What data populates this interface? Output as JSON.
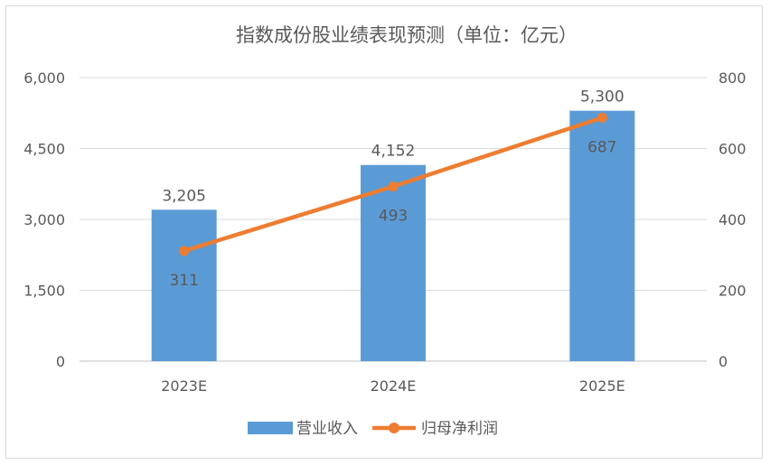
{
  "chart_data": {
    "type": "bar+line",
    "title": "指数成份股业绩表现预测（单位：亿元）",
    "categories": [
      "2023E",
      "2024E",
      "2025E"
    ],
    "series": [
      {
        "name": "营业收入",
        "type": "bar",
        "axis": "left",
        "values": [
          3205,
          4152,
          5300
        ],
        "labels": [
          "3,205",
          "4,152",
          "5,300"
        ],
        "color": "#5B9BD5"
      },
      {
        "name": "归母净利润",
        "type": "line",
        "axis": "right",
        "values": [
          311,
          493,
          687
        ],
        "labels": [
          "311",
          "493",
          "687"
        ],
        "color": "#ED7D31"
      }
    ],
    "left_axis": {
      "range": [
        0,
        6000
      ],
      "ticks": [
        "0",
        "1,500",
        "3,000",
        "4,500",
        "6,000"
      ],
      "tick_values": [
        0,
        1500,
        3000,
        4500,
        6000
      ]
    },
    "right_axis": {
      "range": [
        0,
        800
      ],
      "ticks": [
        "0",
        "200",
        "400",
        "600",
        "800"
      ],
      "tick_values": [
        0,
        200,
        400,
        600,
        800
      ]
    },
    "grid": true,
    "legend": "bottom"
  }
}
